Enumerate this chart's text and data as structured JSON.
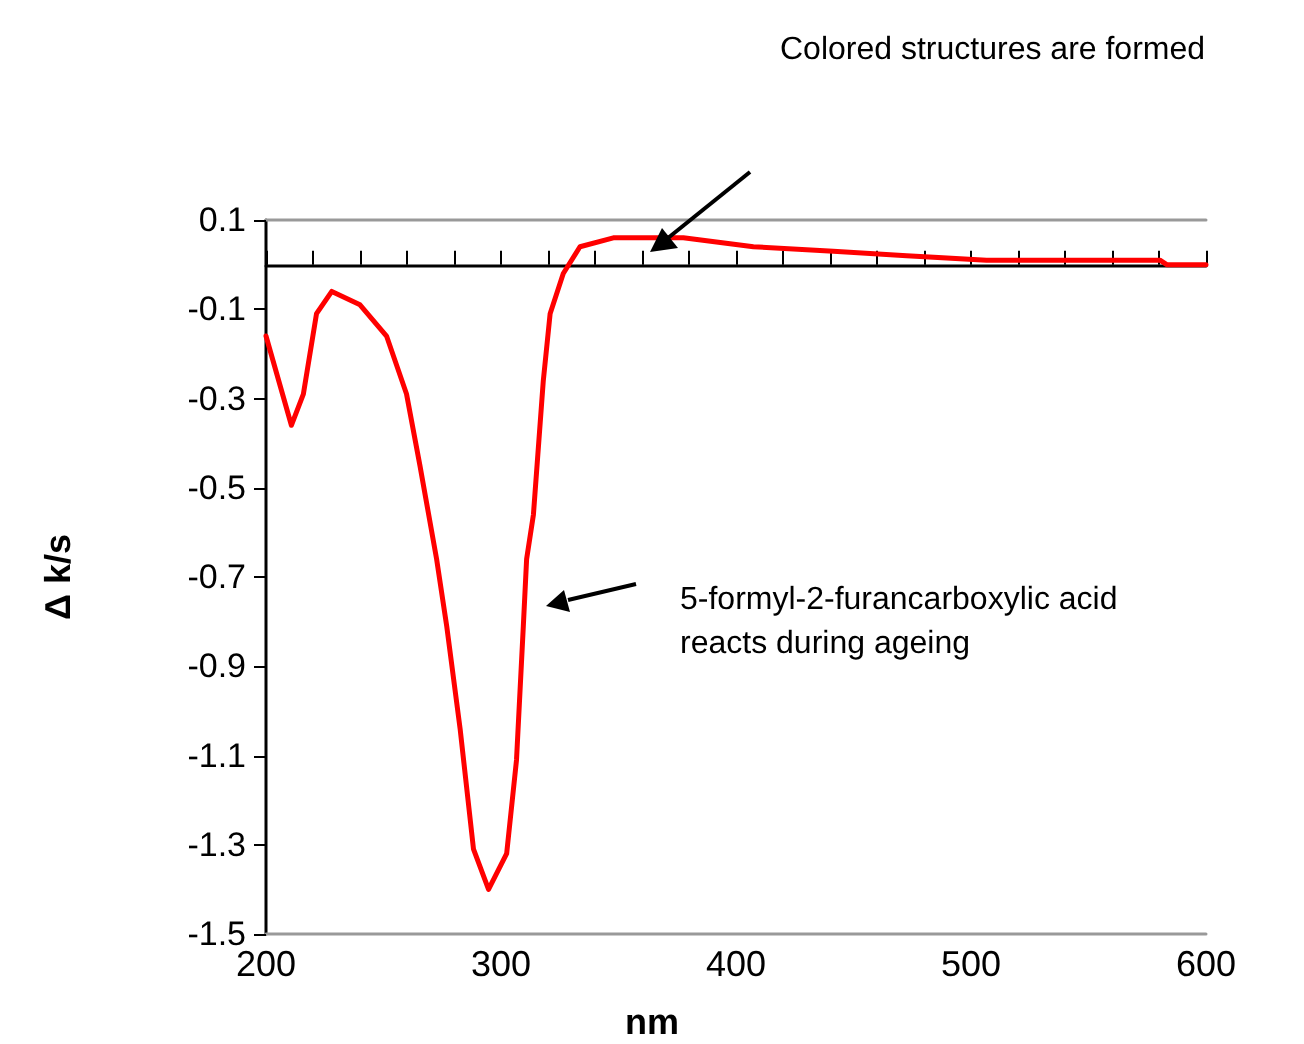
{
  "chart_data": {
    "type": "line",
    "xlabel": "nm",
    "ylabel": "Δ k/s",
    "series": [
      {
        "color": "#ff0000",
        "x": [
          200,
          210.8,
          215.9,
          221.5,
          228,
          240,
          251.3,
          259.8,
          265.5,
          272.6,
          276.9,
          282.6,
          288.3,
          294.7,
          302.4,
          306.6,
          309.5,
          310.9,
          313.8,
          318,
          320.9,
          326.5,
          333.6,
          347.8,
          377.6,
          407.4,
          441.4,
          472.6,
          506.6,
          580.4,
          583.3,
          600
        ],
        "values": [
          -0.16,
          -0.36,
          -0.29,
          -0.11,
          -0.06,
          -0.09,
          -0.16,
          -0.29,
          -0.45,
          -0.66,
          -0.81,
          -1.04,
          -1.31,
          -1.4,
          -1.32,
          -1.11,
          -0.81,
          -0.66,
          -0.56,
          -0.26,
          -0.11,
          -0.02,
          0.04,
          0.06,
          0.06,
          0.04,
          0.03,
          0.02,
          0.01,
          0.01,
          0.0,
          0.0
        ]
      }
    ],
    "xlim": [
      200,
      600
    ],
    "xticks": [
      200,
      300,
      400,
      500,
      600
    ],
    "ylim": [
      -1.5,
      0.1
    ],
    "yticks": [
      0.1,
      -0.1,
      -0.3,
      -0.5,
      -0.7,
      -0.9,
      -1.1,
      -1.3,
      -1.5
    ],
    "annotations": [
      "Colored structures are formed",
      "5-formyl-2-furancarboxylic acid reacts during ageing"
    ],
    "grid": false,
    "marker": "none",
    "line_style": "solid"
  }
}
